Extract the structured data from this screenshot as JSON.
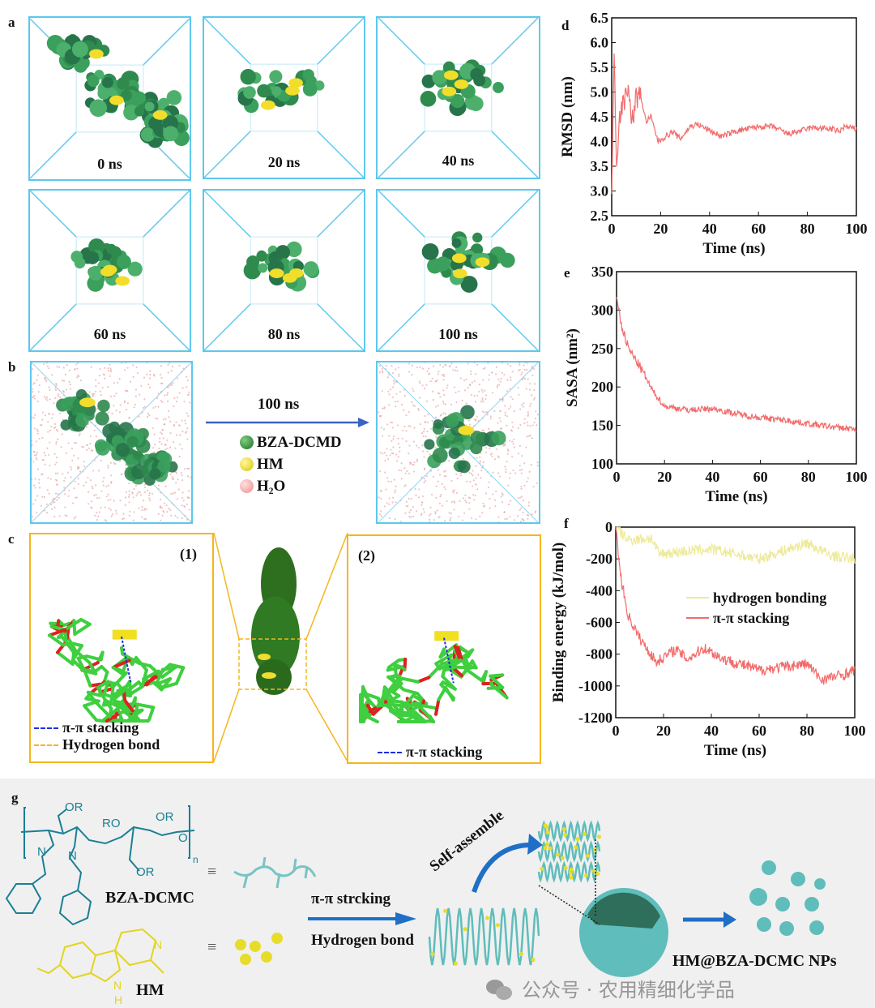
{
  "panel_labels": {
    "a": "a",
    "b": "b",
    "c": "c",
    "d": "d",
    "e": "e",
    "f": "f",
    "g": "g"
  },
  "panel_a": {
    "snapshots": [
      {
        "time": "0 ns"
      },
      {
        "time": "20 ns"
      },
      {
        "time": "40 ns"
      },
      {
        "time": "60 ns"
      },
      {
        "time": "80 ns"
      },
      {
        "time": "100 ns"
      }
    ]
  },
  "panel_b": {
    "arrow_label": "100 ns",
    "legend": [
      {
        "label": "BZA-DCMD",
        "color": "#2e8b3a"
      },
      {
        "label": "HM",
        "color": "#e8d630"
      },
      {
        "label": "H₂O",
        "color": "#f2a0a0"
      }
    ]
  },
  "panel_c": {
    "inset1_label": "(1)",
    "inset2_label": "(2)",
    "legend1": [
      {
        "label": "π-π stacking",
        "color": "#1f2fe0"
      },
      {
        "label": "Hydrogen bond",
        "color": "#f5b61b"
      }
    ],
    "legend2": [
      {
        "label": "π-π stacking",
        "color": "#1f2fe0"
      }
    ]
  },
  "chart_data": [
    {
      "id": "d",
      "type": "line",
      "xlabel": "Time (ns)",
      "ylabel": "RMSD (nm)",
      "xlim": [
        0,
        100
      ],
      "ylim": [
        2.5,
        6.5
      ],
      "xticks": [
        0,
        20,
        40,
        60,
        80,
        100
      ],
      "yticks": [
        "2.5",
        "3.0",
        "3.5",
        "4.0",
        "4.5",
        "5.0",
        "5.5",
        "6.0",
        "6.5"
      ],
      "grid": false,
      "series": [
        {
          "color": "#f26b6b",
          "x": [
            0,
            1,
            2,
            3,
            5,
            7,
            8,
            10,
            12,
            14,
            16,
            19,
            25,
            28,
            32,
            35,
            45,
            50,
            60,
            66,
            72,
            82,
            90,
            93,
            95,
            100
          ],
          "y": [
            3.0,
            6.0,
            3.4,
            4.5,
            4.8,
            5.2,
            4.3,
            4.9,
            4.9,
            4.4,
            4.5,
            4.0,
            4.2,
            4.05,
            4.3,
            4.35,
            4.1,
            4.2,
            4.3,
            4.3,
            4.15,
            4.28,
            4.25,
            4.2,
            4.3,
            4.25
          ]
        }
      ]
    },
    {
      "id": "e",
      "type": "line",
      "xlabel": "Time (ns)",
      "ylabel": "SASA (nm²)",
      "xlim": [
        0,
        100
      ],
      "ylim": [
        100,
        350
      ],
      "xticks": [
        0,
        20,
        40,
        60,
        80,
        100
      ],
      "yticks": [
        "100",
        "150",
        "200",
        "250",
        "300",
        "350"
      ],
      "grid": false,
      "series": [
        {
          "color": "#f26b6b",
          "x": [
            0,
            2,
            5,
            10,
            15,
            20,
            30,
            40,
            50,
            60,
            70,
            80,
            90,
            100
          ],
          "y": [
            320,
            280,
            250,
            225,
            195,
            175,
            170,
            172,
            165,
            160,
            157,
            152,
            148,
            145
          ]
        }
      ]
    },
    {
      "id": "f",
      "type": "line",
      "xlabel": "Time (ns)",
      "ylabel": "Binding energy (kJ/mol)",
      "xlim": [
        0,
        100
      ],
      "ylim": [
        -1200,
        0
      ],
      "xticks": [
        0,
        20,
        40,
        60,
        80,
        100
      ],
      "yticks": [
        "-1200",
        "-1000",
        "-800",
        "-600",
        "-400",
        "-200",
        "0"
      ],
      "grid": false,
      "legend_position": "center-right",
      "series": [
        {
          "name": "hydrogen bonding",
          "color": "#eeea9a",
          "x": [
            0,
            5,
            15,
            18,
            30,
            40,
            60,
            70,
            80,
            90,
            100
          ],
          "y": [
            0,
            -80,
            -70,
            -170,
            -150,
            -140,
            -200,
            -150,
            -100,
            -180,
            -200
          ]
        },
        {
          "name": "π-π stacking",
          "color": "#f26b6b",
          "x": [
            0,
            2,
            5,
            10,
            17,
            25,
            30,
            37,
            45,
            60,
            70,
            80,
            86,
            95,
            100
          ],
          "y": [
            0,
            -300,
            -550,
            -700,
            -850,
            -770,
            -830,
            -760,
            -830,
            -900,
            -880,
            -860,
            -960,
            -930,
            -900
          ]
        }
      ]
    }
  ],
  "panel_g": {
    "polymer_label": "BZA-DCMC",
    "drug_label": "HM",
    "equiv": "≡",
    "arrow_top": "π-π strcking",
    "arrow_bottom": "Hydrogen bond",
    "self_assemble": "Self-assemble",
    "np_label": "HM@BZA-DCMC NPs",
    "struct_text": {
      "or1": "OR",
      "ro": "RO",
      "or2": "OR",
      "or3": "OR",
      "o": "O",
      "n": "N",
      "nh": "N",
      "h": "H",
      "sub_n": "n"
    },
    "colors": {
      "polymer": "#1a7f93",
      "drug": "#e3d41e",
      "np": "#6cc3c0",
      "arrow": "#1f6fc6"
    }
  },
  "watermark": "公众号 · 农用精细化学品"
}
